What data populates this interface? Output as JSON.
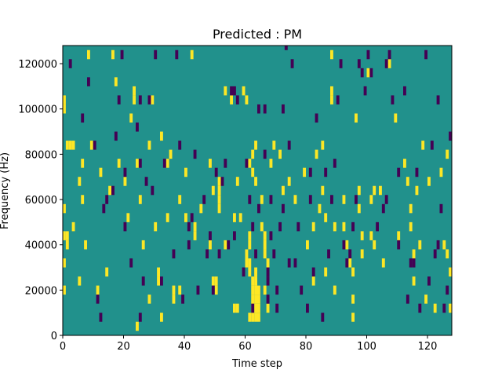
{
  "chart_data": {
    "type": "heatmap",
    "title": "Predicted : PM",
    "xlabel": "Time step",
    "ylabel": "Frequency (Hz)",
    "xlim": [
      0,
      128
    ],
    "ylim": [
      0,
      128000
    ],
    "x_ticks": [
      0,
      20,
      40,
      60,
      80,
      100,
      120
    ],
    "y_ticks": [
      0,
      20000,
      40000,
      60000,
      80000,
      100000,
      120000
    ],
    "x_tick_labels": [
      "0",
      "20",
      "40",
      "60",
      "80",
      "100",
      "120"
    ],
    "y_tick_labels": [
      "0",
      "20000",
      "40000",
      "60000",
      "80000",
      "100000",
      "120000"
    ],
    "grid": false,
    "legend": "none",
    "colormap": "viridis",
    "colors": {
      "background": "#21918c",
      "high": "#fde725",
      "low": "#440154"
    },
    "cell_height_hz": 4000,
    "cells_high": [
      [
        0,
        104000
      ],
      [
        0,
        100000
      ],
      [
        0,
        56000
      ],
      [
        0,
        44000
      ],
      [
        0,
        32000
      ],
      [
        0,
        20000
      ],
      [
        1,
        84000
      ],
      [
        1,
        44000
      ],
      [
        1,
        40000
      ],
      [
        2,
        84000
      ],
      [
        3,
        84000
      ],
      [
        3,
        48000
      ],
      [
        5,
        68000
      ],
      [
        5,
        24000
      ],
      [
        6,
        76000
      ],
      [
        6,
        60000
      ],
      [
        7,
        40000
      ],
      [
        8,
        124000
      ],
      [
        9,
        84000
      ],
      [
        11,
        20000
      ],
      [
        12,
        72000
      ],
      [
        14,
        28000
      ],
      [
        15,
        64000
      ],
      [
        16,
        124000
      ],
      [
        17,
        112000
      ],
      [
        18,
        76000
      ],
      [
        20,
        68000
      ],
      [
        21,
        52000
      ],
      [
        22,
        96000
      ],
      [
        23,
        108000
      ],
      [
        23,
        104000
      ],
      [
        24,
        4000
      ],
      [
        24,
        76000
      ],
      [
        25,
        60000
      ],
      [
        26,
        40000
      ],
      [
        28,
        84000
      ],
      [
        28,
        16000
      ],
      [
        29,
        104000
      ],
      [
        30,
        48000
      ],
      [
        31,
        28000
      ],
      [
        31,
        24000
      ],
      [
        32,
        88000
      ],
      [
        32,
        8000
      ],
      [
        34,
        76000
      ],
      [
        35,
        80000
      ],
      [
        34,
        52000
      ],
      [
        36,
        20000
      ],
      [
        36,
        16000
      ],
      [
        38,
        20000
      ],
      [
        38,
        60000
      ],
      [
        40,
        72000
      ],
      [
        40,
        52000
      ],
      [
        42,
        124000
      ],
      [
        43,
        44000
      ],
      [
        43,
        48000
      ],
      [
        45,
        56000
      ],
      [
        48,
        40000
      ],
      [
        48,
        76000
      ],
      [
        49,
        64000
      ],
      [
        49,
        24000
      ],
      [
        50,
        24000
      ],
      [
        50,
        20000
      ],
      [
        51,
        68000
      ],
      [
        51,
        64000
      ],
      [
        51,
        60000
      ],
      [
        51,
        56000
      ],
      [
        53,
        108000
      ],
      [
        53,
        40000
      ],
      [
        55,
        104000
      ],
      [
        56,
        52000
      ],
      [
        57,
        68000
      ],
      [
        58,
        52000
      ],
      [
        59,
        108000
      ],
      [
        60,
        104000
      ],
      [
        60,
        36000
      ],
      [
        60,
        32000
      ],
      [
        61,
        76000
      ],
      [
        61,
        32000
      ],
      [
        61,
        28000
      ],
      [
        61,
        40000
      ],
      [
        61,
        44000
      ],
      [
        61,
        8000
      ],
      [
        62,
        24000
      ],
      [
        62,
        20000
      ],
      [
        62,
        16000
      ],
      [
        62,
        12000
      ],
      [
        62,
        8000
      ],
      [
        63,
        28000
      ],
      [
        63,
        24000
      ],
      [
        63,
        20000
      ],
      [
        63,
        16000
      ],
      [
        63,
        12000
      ],
      [
        63,
        8000
      ],
      [
        64,
        8000
      ],
      [
        64,
        12000
      ],
      [
        62,
        80000
      ],
      [
        62,
        72000
      ],
      [
        63,
        68000
      ],
      [
        63,
        84000
      ],
      [
        56,
        12000
      ],
      [
        57,
        12000
      ],
      [
        64,
        16000
      ],
      [
        64,
        20000
      ],
      [
        66,
        44000
      ],
      [
        66,
        40000
      ],
      [
        66,
        36000
      ],
      [
        67,
        12000
      ],
      [
        65,
        60000
      ],
      [
        65,
        48000
      ],
      [
        66,
        20000
      ],
      [
        67,
        32000
      ],
      [
        68,
        76000
      ],
      [
        69,
        84000
      ],
      [
        71,
        80000
      ],
      [
        72,
        64000
      ],
      [
        74,
        68000
      ],
      [
        76,
        60000
      ],
      [
        79,
        72000
      ],
      [
        80,
        40000
      ],
      [
        82,
        48000
      ],
      [
        82,
        24000
      ],
      [
        83,
        80000
      ],
      [
        84,
        56000
      ],
      [
        85,
        64000
      ],
      [
        85,
        84000
      ],
      [
        86,
        52000
      ],
      [
        86,
        28000
      ],
      [
        88,
        108000
      ],
      [
        88,
        104000
      ],
      [
        88,
        124000
      ],
      [
        89,
        20000
      ],
      [
        89,
        48000
      ],
      [
        92,
        60000
      ],
      [
        92,
        48000
      ],
      [
        93,
        40000
      ],
      [
        94,
        32000
      ],
      [
        95,
        28000
      ],
      [
        95,
        16000
      ],
      [
        95,
        8000
      ],
      [
        96,
        96000
      ],
      [
        97,
        64000
      ],
      [
        97,
        56000
      ],
      [
        98,
        44000
      ],
      [
        98,
        36000
      ],
      [
        100,
        116000
      ],
      [
        101,
        60000
      ],
      [
        101,
        44000
      ],
      [
        102,
        64000
      ],
      [
        102,
        40000
      ],
      [
        104,
        64000
      ],
      [
        105,
        32000
      ],
      [
        107,
        120000
      ],
      [
        109,
        96000
      ],
      [
        110,
        44000
      ],
      [
        112,
        76000
      ],
      [
        113,
        68000
      ],
      [
        114,
        56000
      ],
      [
        114,
        48000
      ],
      [
        115,
        36000
      ],
      [
        115,
        24000
      ],
      [
        116,
        64000
      ],
      [
        117,
        40000
      ],
      [
        118,
        84000
      ],
      [
        119,
        16000
      ],
      [
        120,
        68000
      ],
      [
        122,
        12000
      ],
      [
        124,
        72000
      ],
      [
        125,
        40000
      ],
      [
        126,
        36000
      ],
      [
        126,
        80000
      ],
      [
        127,
        12000
      ],
      [
        127,
        28000
      ]
    ],
    "cells_low": [
      [
        2,
        120000
      ],
      [
        6,
        96000
      ],
      [
        8,
        112000
      ],
      [
        10,
        84000
      ],
      [
        11,
        16000
      ],
      [
        12,
        8000
      ],
      [
        13,
        56000
      ],
      [
        14,
        60000
      ],
      [
        16,
        64000
      ],
      [
        17,
        88000
      ],
      [
        18,
        104000
      ],
      [
        19,
        124000
      ],
      [
        20,
        48000
      ],
      [
        20,
        72000
      ],
      [
        22,
        32000
      ],
      [
        24,
        92000
      ],
      [
        25,
        104000
      ],
      [
        25,
        76000
      ],
      [
        25,
        8000
      ],
      [
        26,
        24000
      ],
      [
        27,
        68000
      ],
      [
        28,
        104000
      ],
      [
        29,
        64000
      ],
      [
        30,
        124000
      ],
      [
        32,
        24000
      ],
      [
        33,
        76000
      ],
      [
        36,
        36000
      ],
      [
        37,
        124000
      ],
      [
        38,
        84000
      ],
      [
        39,
        16000
      ],
      [
        41,
        40000
      ],
      [
        41,
        48000
      ],
      [
        42,
        52000
      ],
      [
        43,
        80000
      ],
      [
        44,
        20000
      ],
      [
        46,
        60000
      ],
      [
        47,
        36000
      ],
      [
        48,
        44000
      ],
      [
        49,
        20000
      ],
      [
        50,
        72000
      ],
      [
        51,
        36000
      ],
      [
        52,
        68000
      ],
      [
        53,
        76000
      ],
      [
        54,
        40000
      ],
      [
        55,
        108000
      ],
      [
        56,
        108000
      ],
      [
        56,
        44000
      ],
      [
        57,
        104000
      ],
      [
        59,
        28000
      ],
      [
        60,
        76000
      ],
      [
        61,
        60000
      ],
      [
        62,
        48000
      ],
      [
        62,
        12000
      ],
      [
        63,
        36000
      ],
      [
        64,
        56000
      ],
      [
        64,
        100000
      ],
      [
        66,
        100000
      ],
      [
        66,
        80000
      ],
      [
        67,
        16000
      ],
      [
        67,
        24000
      ],
      [
        67,
        28000
      ],
      [
        68,
        60000
      ],
      [
        68,
        44000
      ],
      [
        69,
        36000
      ],
      [
        70,
        20000
      ],
      [
        70,
        12000
      ],
      [
        71,
        48000
      ],
      [
        72,
        100000
      ],
      [
        72,
        56000
      ],
      [
        73,
        128000
      ],
      [
        74,
        84000
      ],
      [
        74,
        32000
      ],
      [
        75,
        120000
      ],
      [
        76,
        32000
      ],
      [
        77,
        48000
      ],
      [
        78,
        20000
      ],
      [
        80,
        12000
      ],
      [
        81,
        60000
      ],
      [
        81,
        72000
      ],
      [
        82,
        28000
      ],
      [
        83,
        96000
      ],
      [
        85,
        8000
      ],
      [
        86,
        72000
      ],
      [
        87,
        36000
      ],
      [
        88,
        60000
      ],
      [
        89,
        76000
      ],
      [
        90,
        104000
      ],
      [
        91,
        120000
      ],
      [
        92,
        40000
      ],
      [
        93,
        32000
      ],
      [
        94,
        36000
      ],
      [
        95,
        48000
      ],
      [
        96,
        60000
      ],
      [
        97,
        120000
      ],
      [
        98,
        116000
      ],
      [
        99,
        108000
      ],
      [
        100,
        124000
      ],
      [
        101,
        116000
      ],
      [
        103,
        48000
      ],
      [
        105,
        56000
      ],
      [
        106,
        60000
      ],
      [
        106,
        120000
      ],
      [
        107,
        124000
      ],
      [
        108,
        104000
      ],
      [
        110,
        40000
      ],
      [
        112,
        108000
      ],
      [
        113,
        16000
      ],
      [
        115,
        32000
      ],
      [
        117,
        12000
      ],
      [
        119,
        124000
      ],
      [
        120,
        24000
      ],
      [
        121,
        84000
      ],
      [
        122,
        36000
      ],
      [
        123,
        40000
      ],
      [
        123,
        104000
      ],
      [
        124,
        56000
      ],
      [
        125,
        12000
      ],
      [
        126,
        20000
      ],
      [
        127,
        88000
      ],
      [
        116,
        72000
      ],
      [
        114,
        32000
      ],
      [
        110,
        72000
      ]
    ]
  }
}
